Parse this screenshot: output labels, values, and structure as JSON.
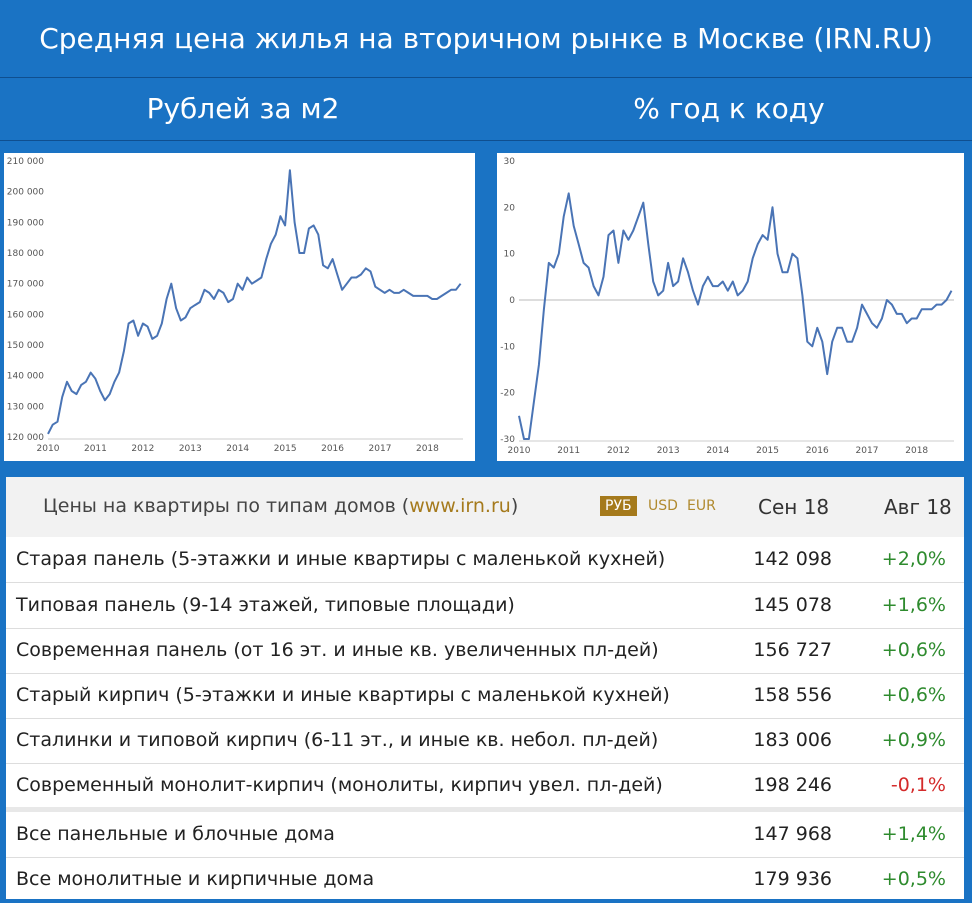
{
  "header": {
    "title": "Средняя цена жилья на вторичном рынке в Москве (IRN.RU)",
    "left_subtitle": "Рублей за м2",
    "right_subtitle": "% год к коду"
  },
  "chart_data": [
    {
      "type": "line",
      "title": "Рублей за м2",
      "x_ticks": [
        "2010",
        "2011",
        "2012",
        "2013",
        "2014",
        "2015",
        "2016",
        "2017",
        "2018"
      ],
      "y_ticks": [
        "120 000",
        "130 000",
        "140 000",
        "150 000",
        "160 000",
        "170 000",
        "180 000",
        "190 000",
        "200 000",
        "210 000"
      ],
      "ylim": [
        120000,
        210000
      ],
      "xlim": [
        2010.0,
        2018.75
      ],
      "color": "#4a74b5",
      "series": [
        {
          "x": [
            2010.0,
            2010.1,
            2010.2,
            2010.3,
            2010.4,
            2010.5,
            2010.6,
            2010.7,
            2010.8,
            2010.9,
            2011.0,
            2011.1,
            2011.2,
            2011.3,
            2011.4,
            2011.5,
            2011.6,
            2011.7,
            2011.8,
            2011.9,
            2012.0,
            2012.1,
            2012.2,
            2012.3,
            2012.4,
            2012.5,
            2012.6,
            2012.7,
            2012.8,
            2012.9,
            2013.0,
            2013.1,
            2013.2,
            2013.3,
            2013.4,
            2013.5,
            2013.6,
            2013.7,
            2013.8,
            2013.9,
            2014.0,
            2014.1,
            2014.2,
            2014.3,
            2014.4,
            2014.5,
            2014.6,
            2014.7,
            2014.8,
            2014.9,
            2015.0,
            2015.1,
            2015.2,
            2015.3,
            2015.4,
            2015.5,
            2015.6,
            2015.7,
            2015.8,
            2015.9,
            2016.0,
            2016.1,
            2016.2,
            2016.3,
            2016.4,
            2016.5,
            2016.6,
            2016.7,
            2016.8,
            2016.9,
            2017.0,
            2017.1,
            2017.2,
            2017.3,
            2017.4,
            2017.5,
            2017.6,
            2017.7,
            2017.8,
            2017.9,
            2018.0,
            2018.1,
            2018.2,
            2018.3,
            2018.4,
            2018.5,
            2018.6,
            2018.7
          ],
          "y": [
            121000,
            124000,
            125000,
            133000,
            138000,
            135000,
            134000,
            137000,
            138000,
            141000,
            139000,
            135000,
            132000,
            134000,
            138000,
            141000,
            148000,
            157000,
            158000,
            153000,
            157000,
            156000,
            152000,
            153000,
            157000,
            165000,
            170000,
            162000,
            158000,
            159000,
            162000,
            163000,
            164000,
            168000,
            167000,
            165000,
            168000,
            167000,
            164000,
            165000,
            170000,
            168000,
            172000,
            170000,
            171000,
            172000,
            178000,
            183000,
            186000,
            192000,
            189000,
            207000,
            190000,
            180000,
            180000,
            188000,
            189000,
            186000,
            176000,
            175000,
            178000,
            173000,
            168000,
            170000,
            172000,
            172000,
            173000,
            175000,
            174000,
            169000,
            168000,
            167000,
            168000,
            167000,
            167000,
            168000,
            167000,
            166000,
            166000,
            166000,
            166000,
            165000,
            165000,
            166000,
            167000,
            168000,
            168000,
            170000
          ]
        }
      ]
    },
    {
      "type": "line",
      "title": "% год к коду",
      "x_ticks": [
        "2010",
        "2011",
        "2012",
        "2013",
        "2014",
        "2015",
        "2016",
        "2017",
        "2018"
      ],
      "y_ticks": [
        "30",
        "20",
        "10",
        "0",
        "-10",
        "-20",
        "-30"
      ],
      "ylim": [
        -30,
        30
      ],
      "xlim": [
        2010.0,
        2018.75
      ],
      "color": "#4a74b5",
      "series": [
        {
          "x": [
            2010.0,
            2010.1,
            2010.2,
            2010.3,
            2010.4,
            2010.5,
            2010.6,
            2010.7,
            2010.8,
            2010.9,
            2011.0,
            2011.1,
            2011.2,
            2011.3,
            2011.4,
            2011.5,
            2011.6,
            2011.7,
            2011.8,
            2011.9,
            2012.0,
            2012.1,
            2012.2,
            2012.3,
            2012.4,
            2012.5,
            2012.6,
            2012.7,
            2012.8,
            2012.9,
            2013.0,
            2013.1,
            2013.2,
            2013.3,
            2013.4,
            2013.5,
            2013.6,
            2013.7,
            2013.8,
            2013.9,
            2014.0,
            2014.1,
            2014.2,
            2014.3,
            2014.4,
            2014.5,
            2014.6,
            2014.7,
            2014.8,
            2014.9,
            2015.0,
            2015.1,
            2015.2,
            2015.3,
            2015.4,
            2015.5,
            2015.6,
            2015.7,
            2015.8,
            2015.9,
            2016.0,
            2016.1,
            2016.2,
            2016.3,
            2016.4,
            2016.5,
            2016.6,
            2016.7,
            2016.8,
            2016.9,
            2017.0,
            2017.1,
            2017.2,
            2017.3,
            2017.4,
            2017.5,
            2017.6,
            2017.7,
            2017.8,
            2017.9,
            2018.0,
            2018.1,
            2018.2,
            2018.3,
            2018.4,
            2018.5,
            2018.6,
            2018.7
          ],
          "y": [
            -25,
            -30,
            -30,
            -22,
            -14,
            -2,
            8,
            7,
            10,
            18,
            23,
            16,
            12,
            8,
            7,
            3,
            1,
            5,
            14,
            15,
            8,
            15,
            13,
            15,
            18,
            21,
            12,
            4,
            1,
            2,
            8,
            3,
            4,
            9,
            6,
            2,
            -1,
            3,
            5,
            3,
            3,
            4,
            2,
            4,
            1,
            2,
            4,
            9,
            12,
            14,
            13,
            20,
            10,
            6,
            6,
            10,
            9,
            1,
            -9,
            -10,
            -6,
            -9,
            -16,
            -9,
            -6,
            -6,
            -9,
            -9,
            -6,
            -1,
            -3,
            -5,
            -6,
            -4,
            0,
            -1,
            -3,
            -3,
            -5,
            -4,
            -4,
            -2,
            -2,
            -2,
            -1,
            -1,
            0,
            2
          ]
        }
      ]
    }
  ],
  "table": {
    "caption_text": "Цены на квартиры по типам домов (",
    "caption_link": "www.irn.ru",
    "caption_close": ")",
    "currencies": [
      "РУБ",
      "USD",
      "EUR"
    ],
    "active_currency": "РУБ",
    "col_current": "Сен 18",
    "col_prev": "Авг 18",
    "rows": [
      {
        "name": "Старая панель (5-этажки и иные квартиры с маленькой кухней)",
        "price": "142 098",
        "change": "+2,0%"
      },
      {
        "name": "Типовая панель (9-14 этажей, типовые площади)",
        "price": "145 078",
        "change": "+1,6%"
      },
      {
        "name": "Современная панель (от 16 эт. и иные кв. увеличенных пл-дей)",
        "price": "156 727",
        "change": "+0,6%"
      },
      {
        "name": "Старый кирпич (5-этажки и иные квартиры с маленькой кухней)",
        "price": "158 556",
        "change": "+0,6%"
      },
      {
        "name": "Сталинки и типовой кирпич (6-11 эт., и иные кв. небол. пл-дей)",
        "price": "183 006",
        "change": "+0,9%"
      },
      {
        "name": "Современный монолит-кирпич (монолиты, кирпич увел. пл-дей)",
        "price": "198 246",
        "change": "-0,1%"
      }
    ],
    "summary_rows": [
      {
        "name": "Все панельные и блочные дома",
        "price": "147 968",
        "change": "+1,4%"
      },
      {
        "name": "Все монолитные и кирпичные дома",
        "price": "179 936",
        "change": "+0,5%"
      }
    ]
  }
}
